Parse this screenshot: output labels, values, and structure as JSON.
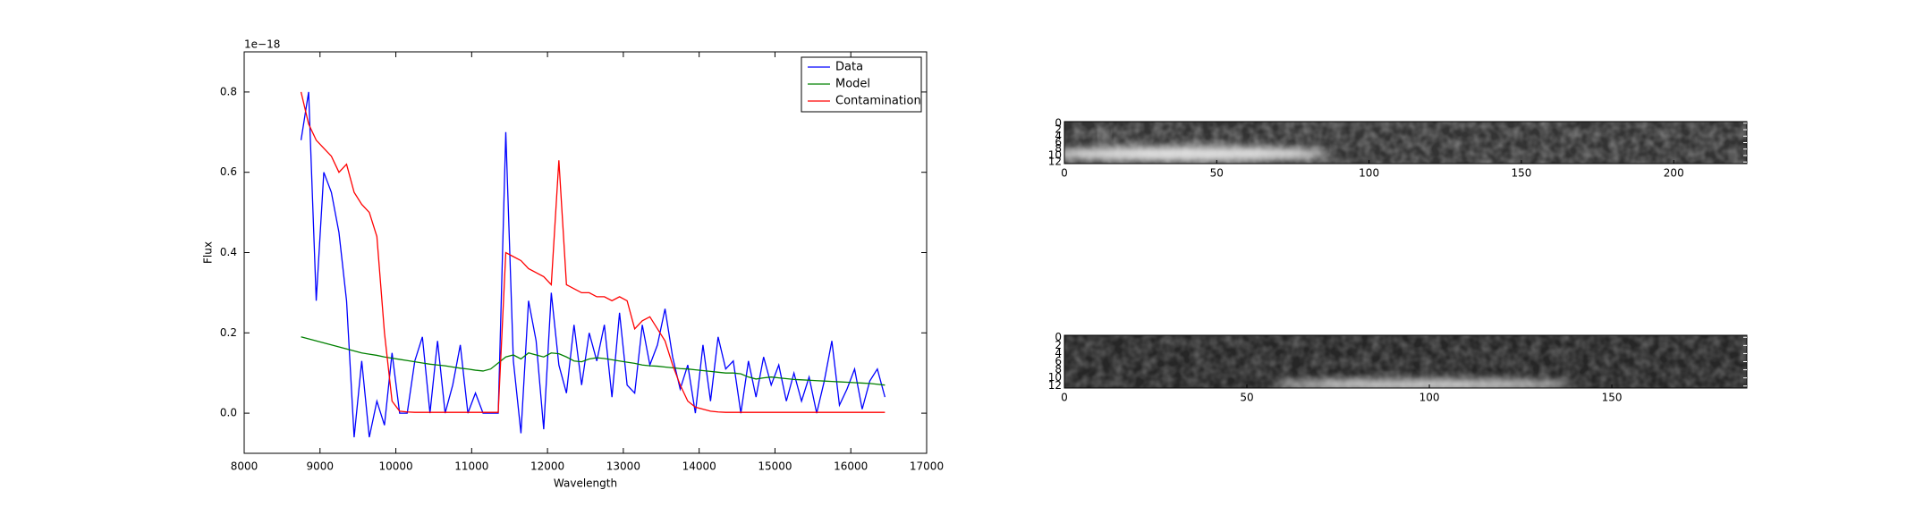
{
  "chart_data": [
    {
      "type": "line",
      "xlabel": "Wavelength",
      "ylabel": "Flux",
      "offset_text": "1e−18",
      "xlim": [
        8000,
        17000
      ],
      "ylim": [
        -0.1,
        0.9
      ],
      "xticks": [
        8000,
        9000,
        10000,
        11000,
        12000,
        13000,
        14000,
        15000,
        16000,
        17000
      ],
      "yticks": [
        {
          "value": 0,
          "label": "0.0"
        },
        0.2,
        0.4,
        0.6,
        0.8
      ],
      "legend": "upper right",
      "x": [
        8750,
        8850,
        8950,
        9050,
        9150,
        9250,
        9350,
        9450,
        9550,
        9650,
        9750,
        9850,
        9950,
        10050,
        10150,
        10250,
        10350,
        10450,
        10550,
        10650,
        10750,
        10850,
        10950,
        11050,
        11150,
        11250,
        11350,
        11450,
        11550,
        11650,
        11750,
        11850,
        11950,
        12050,
        12150,
        12250,
        12350,
        12450,
        12550,
        12650,
        12750,
        12850,
        12950,
        13050,
        13150,
        13250,
        13350,
        13450,
        13550,
        13650,
        13750,
        13850,
        13950,
        14050,
        14150,
        14250,
        14350,
        14450,
        14550,
        14650,
        14750,
        14850,
        14950,
        15050,
        15150,
        15250,
        15350,
        15450,
        15550,
        15650,
        15750,
        15850,
        15950,
        16050,
        16150,
        16250,
        16350,
        16450
      ],
      "series": [
        {
          "name": "Data",
          "color": "#0000ff",
          "values": [
            0.68,
            0.8,
            0.28,
            0.6,
            0.55,
            0.45,
            0.28,
            -0.06,
            0.13,
            -0.06,
            0.03,
            -0.03,
            0.15,
            0,
            0,
            0.13,
            0.19,
            0,
            0.18,
            0,
            0.07,
            0.17,
            0,
            0.05,
            0,
            0,
            0,
            0.7,
            0.13,
            -0.05,
            0.28,
            0.18,
            -0.04,
            0.3,
            0.12,
            0.05,
            0.22,
            0.07,
            0.2,
            0.13,
            0.22,
            0.04,
            0.25,
            0.07,
            0.05,
            0.22,
            0.12,
            0.17,
            0.26,
            0.14,
            0.06,
            0.12,
            0,
            0.17,
            0.03,
            0.19,
            0.11,
            0.13,
            0,
            0.13,
            0.04,
            0.14,
            0.07,
            0.12,
            0.03,
            0.1,
            0.03,
            0.09,
            0,
            0.08,
            0.18,
            0.02,
            0.06,
            0.11,
            0.01,
            0.08,
            0.11,
            0.04
          ]
        },
        {
          "name": "Model",
          "color": "#008000",
          "values": [
            0.19,
            0.185,
            0.18,
            0.175,
            0.17,
            0.165,
            0.16,
            0.155,
            0.15,
            0.147,
            0.144,
            0.14,
            0.137,
            0.134,
            0.131,
            0.128,
            0.125,
            0.122,
            0.12,
            0.118,
            0.115,
            0.112,
            0.11,
            0.107,
            0.105,
            0.11,
            0.125,
            0.14,
            0.145,
            0.135,
            0.15,
            0.145,
            0.14,
            0.15,
            0.148,
            0.14,
            0.13,
            0.128,
            0.135,
            0.138,
            0.136,
            0.133,
            0.13,
            0.127,
            0.124,
            0.12,
            0.118,
            0.117,
            0.115,
            0.113,
            0.111,
            0.11,
            0.108,
            0.106,
            0.104,
            0.102,
            0.1,
            0.1,
            0.098,
            0.09,
            0.085,
            0.088,
            0.09,
            0.088,
            0.086,
            0.084,
            0.083,
            0.082,
            0.081,
            0.08,
            0.079,
            0.078,
            0.077,
            0.076,
            0.075,
            0.074,
            0.072,
            0.07
          ]
        },
        {
          "name": "Contamination",
          "color": "#ff0000",
          "values": [
            0.8,
            0.72,
            0.68,
            0.66,
            0.64,
            0.6,
            0.62,
            0.55,
            0.52,
            0.5,
            0.44,
            0.2,
            0.03,
            0.005,
            0.003,
            0.002,
            0.002,
            0.002,
            0.002,
            0.002,
            0.002,
            0.002,
            0.002,
            0.002,
            0.002,
            0.002,
            0.002,
            0.4,
            0.39,
            0.38,
            0.36,
            0.35,
            0.34,
            0.32,
            0.63,
            0.32,
            0.31,
            0.3,
            0.3,
            0.29,
            0.29,
            0.28,
            0.29,
            0.28,
            0.21,
            0.23,
            0.24,
            0.21,
            0.18,
            0.12,
            0.07,
            0.03,
            0.015,
            0.01,
            0.005,
            0.003,
            0.002,
            0.002,
            0.002,
            0.002,
            0.002,
            0.002,
            0.002,
            0.002,
            0.002,
            0.002,
            0.002,
            0.002,
            0.002,
            0.002,
            0.002,
            0.002,
            0.002,
            0.002,
            0.002,
            0.002,
            0.002,
            0.002
          ]
        }
      ]
    },
    {
      "type": "image",
      "xlim": [
        0,
        224
      ],
      "ylim": [
        -0.5,
        12.5
      ],
      "origin": "upper",
      "xticks": [
        0,
        50,
        100,
        150,
        200
      ],
      "yticks": [
        0,
        2,
        4,
        6,
        8,
        10,
        12
      ]
    },
    {
      "type": "image",
      "xlim": [
        0,
        187
      ],
      "ylim": [
        -0.5,
        12.5
      ],
      "origin": "upper",
      "xticks": [
        0,
        50,
        100,
        150
      ],
      "yticks": [
        0,
        2,
        4,
        6,
        8,
        10,
        12
      ]
    }
  ]
}
